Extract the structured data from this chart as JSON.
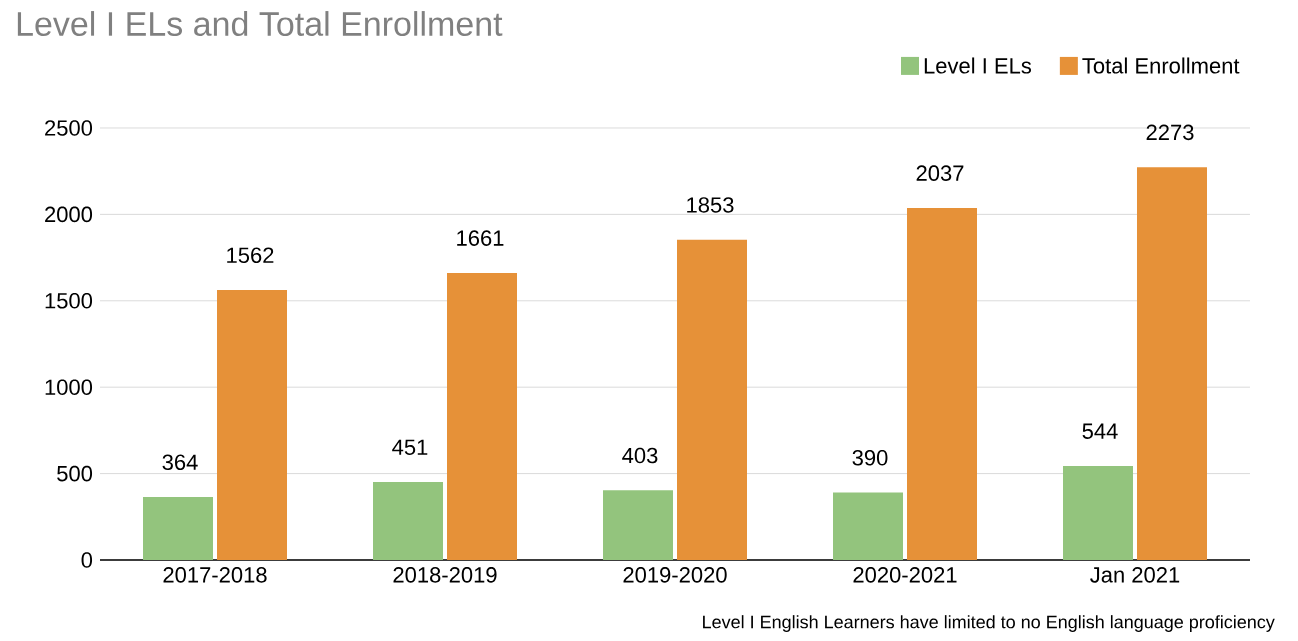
{
  "chart_data": {
    "type": "bar",
    "title": "Level I ELs and Total Enrollment",
    "categories": [
      "2017-2018",
      "2018-2019",
      "2019-2020",
      "2020-2021",
      "Jan 2021"
    ],
    "series": [
      {
        "name": "Level I ELs",
        "color": "#93c47d",
        "values": [
          364,
          451,
          403,
          390,
          544
        ]
      },
      {
        "name": "Total Enrollment",
        "color": "#e69138",
        "values": [
          1562,
          1661,
          1853,
          2037,
          2273
        ]
      }
    ],
    "ylim": [
      0,
      2500
    ],
    "yticks": [
      0,
      500,
      1000,
      1500,
      2000,
      2500
    ],
    "grid": "y",
    "legend": "top right",
    "data_labels": true,
    "annotations": [
      "Level I English Learners have limited to no English language proficiency"
    ]
  }
}
